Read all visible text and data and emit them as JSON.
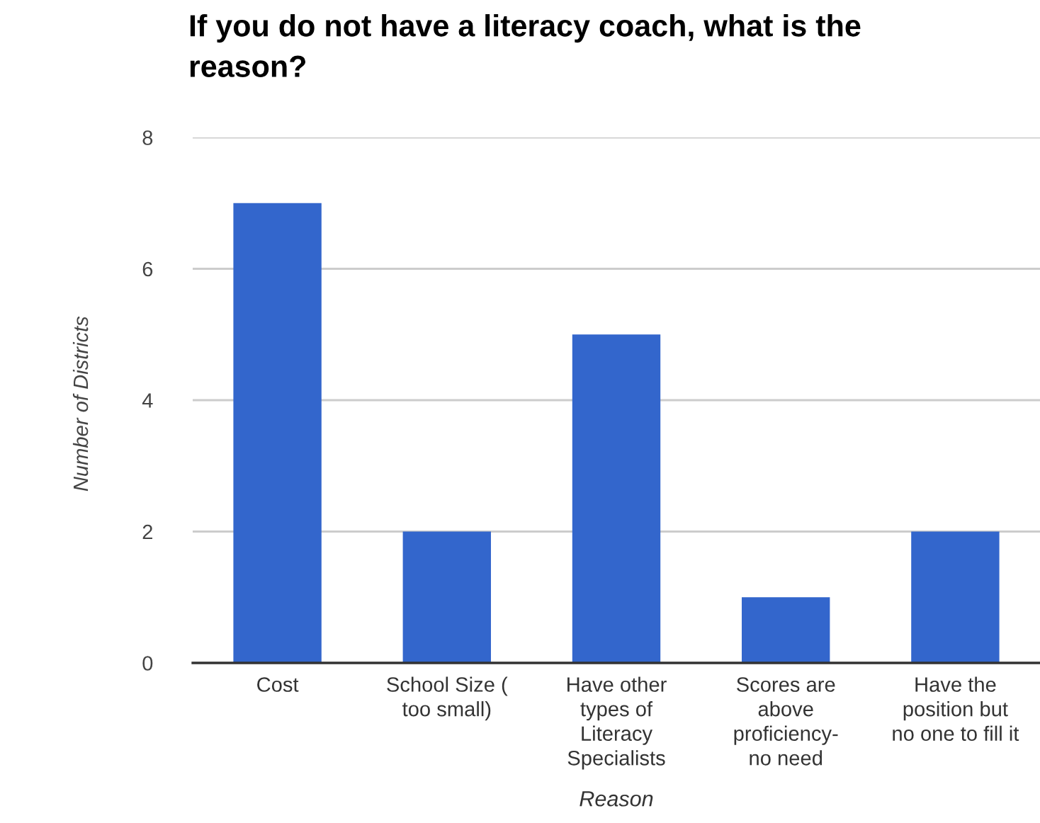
{
  "chart_data": {
    "type": "bar",
    "title": "If you do not have a literacy coach, what is the reason?",
    "xlabel": "Reason",
    "ylabel": "Number of Districts",
    "categories": [
      "Cost",
      "School Size (\ntoo small)",
      "Have other\ntypes of\nLiteracy\nSpecialists",
      "Scores are\nabove\nproficiency-\nno need",
      "Have the\nposition but\nno one to fill it"
    ],
    "values": [
      7,
      2,
      5,
      1,
      2
    ],
    "color": "#3366cc",
    "ylim": [
      0,
      8
    ],
    "yticks": [
      0,
      2,
      4,
      6,
      8
    ],
    "grid": "y"
  }
}
